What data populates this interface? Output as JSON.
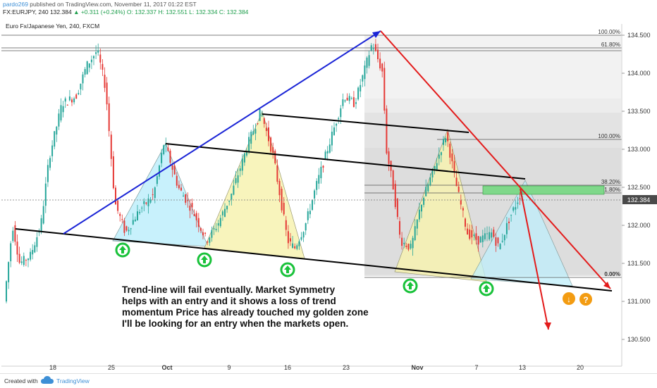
{
  "header": {
    "user": "pardo269",
    "published": "published on TradingView.com, November 11, 2017 01:22 EST",
    "symbol_line": "FX:EURJPY, 240  132.384  ▲ +0.311 (+0.24%)  O: 132.337  H: 132.551  L: 132.334  C: 132.384",
    "symbol": "FX:EURJPY, 240",
    "last": "132.384",
    "change": "▲ +0.311 (+0.24%)",
    "ohlc": "O: 132.337  H: 132.551  L: 132.334  C: 132.384"
  },
  "chart_data": {
    "type": "candlestick",
    "title": "Euro Fx/Japanese Yen, 240, FXCM",
    "ylim": [
      130.35,
      134.65
    ],
    "y_ticks": [
      "134.500",
      "134.000",
      "133.500",
      "133.000",
      "132.500",
      "132.000",
      "131.500",
      "131.000",
      "130.500"
    ],
    "x_ticks": [
      "18",
      "25",
      "Oct",
      "9",
      "16",
      "23",
      "Nov",
      "7",
      "13",
      "20"
    ],
    "last_price": "132.384",
    "fib_upper": [
      "100.00%",
      "61.80%"
    ],
    "fib_lower": [
      "100.00%",
      "38.20%",
      "61.80%",
      "0.00%"
    ],
    "annotation": "Trend-line will fail eventually. Market Symmetry helps with an entry and it shows a loss of trend momentum Price has already touched my golden zone I'll be looking for an entry when the markets open.",
    "colors": {
      "up": "#26a69a",
      "down": "#e53935",
      "blue_line": "#1a24d6",
      "red_line": "#e31b1b",
      "green_arrow": "#19c23a",
      "orange": "#f39c12",
      "cyan_fill": "#bfeffc",
      "yellow_fill": "#f7f3b1",
      "zone": "#7fd88a"
    }
  },
  "footer": {
    "created": "Created with",
    "brand": "TradingView"
  }
}
